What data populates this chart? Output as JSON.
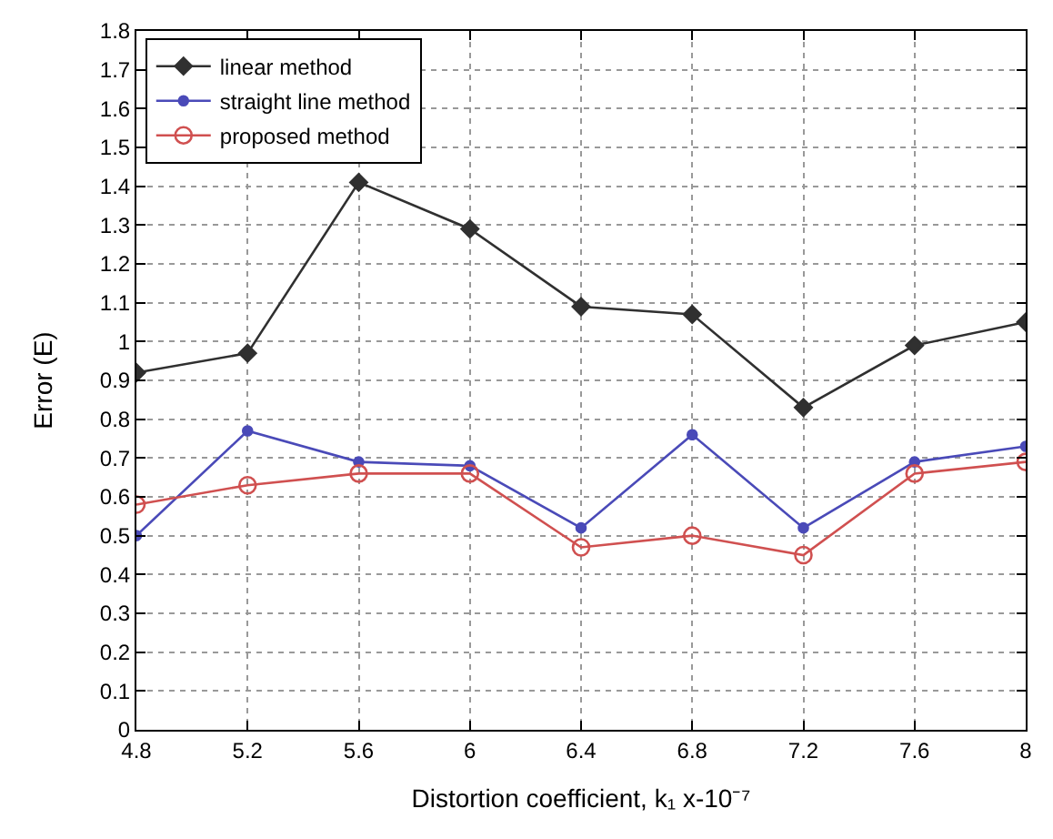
{
  "chart_data": {
    "type": "line",
    "xlabel": "Distortion coefficient, k₁ x-10⁻⁷",
    "ylabel": "Error (E)",
    "x": [
      4.8,
      5.2,
      5.6,
      6,
      6.4,
      6.8,
      7.2,
      7.6,
      8
    ],
    "series": [
      {
        "name": "linear method",
        "color": "#303030",
        "marker": "diamond",
        "values": [
          0.92,
          0.97,
          1.41,
          1.29,
          1.09,
          1.07,
          0.83,
          0.99,
          1.05
        ]
      },
      {
        "name": "straight line method",
        "color": "#4a4ab8",
        "marker": "circle",
        "values": [
          0.5,
          0.77,
          0.69,
          0.68,
          0.52,
          0.76,
          0.52,
          0.69,
          0.73
        ]
      },
      {
        "name": "proposed method",
        "color": "#d05050",
        "marker": "circle-open",
        "values": [
          0.58,
          0.63,
          0.66,
          0.66,
          0.47,
          0.5,
          0.45,
          0.66,
          0.69
        ]
      }
    ],
    "xlim": [
      4.8,
      8
    ],
    "xticks": [
      4.8,
      5.2,
      5.6,
      6,
      6.4,
      6.8,
      7.2,
      7.6,
      8
    ],
    "ylim": [
      0,
      1.8
    ],
    "yticks": [
      0,
      0.1,
      0.2,
      0.3,
      0.4,
      0.5,
      0.6,
      0.7,
      0.8,
      0.9,
      1,
      1.1,
      1.2,
      1.3,
      1.4,
      1.5,
      1.6,
      1.7,
      1.8
    ],
    "grid": true,
    "legend": "top left",
    "line_style": "solid"
  }
}
